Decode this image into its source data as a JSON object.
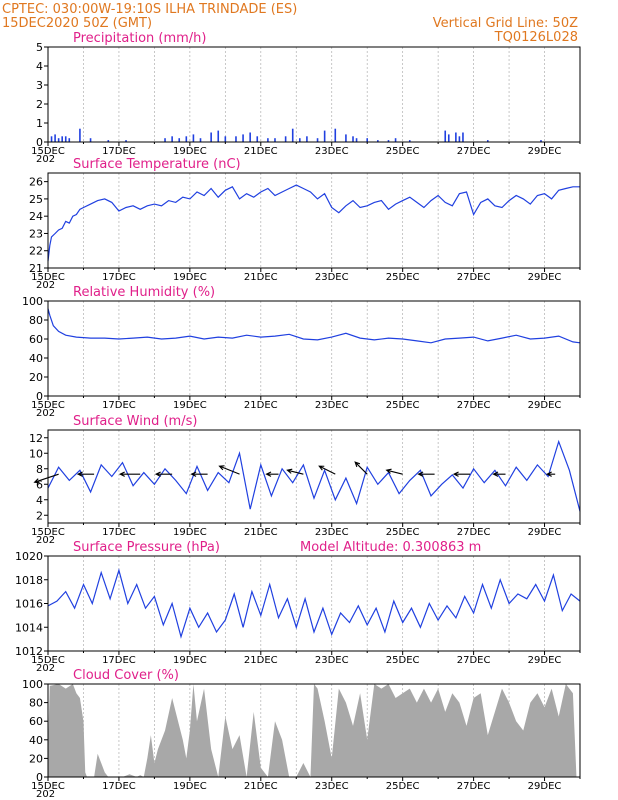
{
  "header": {
    "line1_left": "CPTEC:   030:00W-19:10S   ILHA TRINDADE (ES)",
    "line2_left": "15DEC2020 50Z (GMT)",
    "line1_right": "Vertical Grid Line: 50Z",
    "line2_right": "TQ0126L028"
  },
  "colors": {
    "header": "#e07820",
    "title": "#e0208a",
    "series": "#2040e0",
    "cloud": "#a8a8a8"
  },
  "x_axis": {
    "tick_labels": [
      "15DEC",
      "17DEC",
      "19DEC",
      "21DEC",
      "23DEC",
      "25DEC",
      "27DEC",
      "29DEC"
    ],
    "year_stub": "202"
  },
  "chart_data": [
    {
      "id": "precip",
      "type": "bar",
      "title": "Precipitation (mm/h)",
      "ylim": [
        0,
        5
      ],
      "yticks": [
        0,
        1,
        2,
        3,
        4,
        5
      ],
      "days": 15,
      "x": [
        0.1,
        0.2,
        0.3,
        0.4,
        0.5,
        0.6,
        0.9,
        1.2,
        1.7,
        2.2,
        3.3,
        3.5,
        3.7,
        3.9,
        4.1,
        4.3,
        4.6,
        4.8,
        5.0,
        5.3,
        5.5,
        5.7,
        5.9,
        6.2,
        6.4,
        6.7,
        6.9,
        7.1,
        7.3,
        7.6,
        7.8,
        8.1,
        8.4,
        8.6,
        8.7,
        9.0,
        9.3,
        9.6,
        9.8,
        10.2,
        11.2,
        11.3,
        11.5,
        11.6,
        11.7,
        12.4,
        13.9
      ],
      "values": [
        0.3,
        0.4,
        0.2,
        0.3,
        0.3,
        0.2,
        0.7,
        0.2,
        0.1,
        0.1,
        0.2,
        0.3,
        0.2,
        0.3,
        0.4,
        0.2,
        0.5,
        0.6,
        0.3,
        0.3,
        0.4,
        0.5,
        0.3,
        0.2,
        0.2,
        0.3,
        0.7,
        0.2,
        0.3,
        0.2,
        0.6,
        0.7,
        0.4,
        0.3,
        0.2,
        0.2,
        0.1,
        0.1,
        0.2,
        0.1,
        0.6,
        0.4,
        0.5,
        0.3,
        0.5,
        0.1,
        0.1
      ]
    },
    {
      "id": "temp",
      "type": "line",
      "title": "Surface Temperature (nC)",
      "ylim": [
        21,
        26.5
      ],
      "yticks": [
        21,
        22,
        23,
        24,
        25,
        26
      ],
      "days": 15,
      "x": [
        0,
        0.05,
        0.1,
        0.2,
        0.3,
        0.4,
        0.5,
        0.6,
        0.7,
        0.8,
        0.9,
        1.0,
        1.2,
        1.4,
        1.6,
        1.8,
        2.0,
        2.2,
        2.4,
        2.6,
        2.8,
        3.0,
        3.2,
        3.4,
        3.6,
        3.8,
        4.0,
        4.2,
        4.4,
        4.6,
        4.8,
        5.0,
        5.2,
        5.4,
        5.6,
        5.8,
        6.0,
        6.2,
        6.4,
        6.6,
        6.8,
        7.0,
        7.2,
        7.4,
        7.6,
        7.8,
        8.0,
        8.2,
        8.4,
        8.6,
        8.8,
        9.0,
        9.2,
        9.4,
        9.6,
        9.8,
        10.0,
        10.2,
        10.4,
        10.6,
        10.8,
        11.0,
        11.2,
        11.4,
        11.6,
        11.8,
        12.0,
        12.2,
        12.4,
        12.6,
        12.8,
        13.0,
        13.2,
        13.4,
        13.6,
        13.8,
        14.0,
        14.2,
        14.4,
        14.6,
        14.8,
        15.0
      ],
      "values": [
        21.4,
        22.3,
        22.8,
        23.0,
        23.2,
        23.3,
        23.7,
        23.6,
        24.0,
        24.1,
        24.4,
        24.5,
        24.7,
        24.9,
        25.0,
        24.8,
        24.3,
        24.5,
        24.6,
        24.4,
        24.6,
        24.7,
        24.6,
        24.9,
        24.8,
        25.1,
        25.0,
        25.4,
        25.2,
        25.6,
        25.1,
        25.5,
        25.7,
        25.0,
        25.3,
        25.1,
        25.4,
        25.6,
        25.2,
        25.4,
        25.6,
        25.8,
        25.6,
        25.4,
        25.0,
        25.3,
        24.5,
        24.2,
        24.6,
        24.9,
        24.5,
        24.6,
        24.8,
        24.9,
        24.4,
        24.7,
        24.9,
        25.1,
        24.8,
        24.5,
        24.9,
        25.2,
        24.8,
        24.6,
        25.3,
        25.4,
        24.1,
        24.8,
        25.0,
        24.6,
        24.5,
        24.9,
        25.2,
        25.0,
        24.7,
        25.2,
        25.3,
        25.0,
        25.5,
        25.6,
        25.7,
        25.7
      ]
    },
    {
      "id": "rh",
      "type": "line",
      "title": "Relative Humidity (%)",
      "ylim": [
        0,
        100
      ],
      "yticks": [
        0,
        20,
        40,
        60,
        80,
        100
      ],
      "days": 15,
      "x": [
        0,
        0.05,
        0.15,
        0.3,
        0.5,
        0.8,
        1.2,
        1.6,
        2.0,
        2.4,
        2.8,
        3.2,
        3.6,
        4.0,
        4.4,
        4.8,
        5.2,
        5.6,
        6.0,
        6.4,
        6.8,
        7.2,
        7.6,
        8.0,
        8.4,
        8.8,
        9.2,
        9.6,
        10.0,
        10.4,
        10.8,
        11.2,
        11.6,
        12.0,
        12.4,
        12.8,
        13.2,
        13.6,
        14.0,
        14.4,
        14.8,
        15.0
      ],
      "values": [
        92,
        85,
        74,
        68,
        64,
        62,
        61,
        61,
        60,
        61,
        62,
        60,
        61,
        63,
        60,
        62,
        61,
        64,
        62,
        63,
        65,
        60,
        59,
        62,
        66,
        61,
        59,
        61,
        60,
        58,
        56,
        60,
        61,
        62,
        58,
        61,
        64,
        60,
        61,
        63,
        57,
        56
      ]
    },
    {
      "id": "wind",
      "type": "line",
      "title": "Surface Wind (m/s)",
      "ylim": [
        1,
        13
      ],
      "yticks": [
        2,
        4,
        6,
        8,
        10,
        12
      ],
      "days": 15,
      "x": [
        0,
        0.3,
        0.6,
        0.9,
        1.2,
        1.5,
        1.8,
        2.1,
        2.4,
        2.7,
        3.0,
        3.3,
        3.6,
        3.9,
        4.2,
        4.5,
        4.8,
        5.1,
        5.4,
        5.7,
        6.0,
        6.3,
        6.6,
        6.9,
        7.2,
        7.5,
        7.8,
        8.1,
        8.4,
        8.7,
        9.0,
        9.3,
        9.6,
        9.9,
        10.2,
        10.5,
        10.8,
        11.1,
        11.4,
        11.7,
        12.0,
        12.3,
        12.6,
        12.9,
        13.2,
        13.5,
        13.8,
        14.1,
        14.4,
        14.7,
        15.0
      ],
      "values": [
        5.5,
        8.2,
        6.5,
        7.8,
        5.0,
        8.5,
        7.0,
        8.8,
        5.8,
        7.5,
        6.0,
        8.0,
        6.5,
        4.8,
        8.3,
        5.2,
        7.5,
        6.2,
        10.0,
        2.8,
        8.5,
        4.5,
        8.0,
        6.2,
        8.5,
        4.2,
        7.8,
        4.0,
        6.8,
        3.5,
        8.2,
        6.0,
        7.5,
        4.8,
        6.5,
        7.8,
        4.5,
        6.0,
        7.2,
        5.5,
        8.0,
        6.2,
        7.8,
        5.8,
        8.2,
        6.5,
        8.5,
        7.0,
        11.5,
        7.8,
        2.5
      ],
      "vectors": [
        {
          "x": 0.3,
          "u": -3,
          "v": -1
        },
        {
          "x": 1.3,
          "u": -2,
          "v": 0
        },
        {
          "x": 2.6,
          "u": -2.5,
          "v": 0
        },
        {
          "x": 3.5,
          "u": -2,
          "v": 0
        },
        {
          "x": 4.5,
          "u": -2,
          "v": 0
        },
        {
          "x": 5.4,
          "u": -2.5,
          "v": 1
        },
        {
          "x": 6.5,
          "u": -1.5,
          "v": 0
        },
        {
          "x": 7.2,
          "u": -2,
          "v": 0.5
        },
        {
          "x": 8.1,
          "u": -2,
          "v": 1
        },
        {
          "x": 9.0,
          "u": -1.5,
          "v": 1.5
        },
        {
          "x": 10.0,
          "u": -2,
          "v": 0.5
        },
        {
          "x": 10.9,
          "u": -2,
          "v": 0
        },
        {
          "x": 11.9,
          "u": -2,
          "v": 0
        },
        {
          "x": 12.9,
          "u": -1.5,
          "v": 0
        },
        {
          "x": 14.3,
          "u": -1,
          "v": 0
        }
      ]
    },
    {
      "id": "pres",
      "type": "line",
      "title": "Surface Pressure (hPa)",
      "annotation": "Model Altitude: 0.300863 m",
      "ylim": [
        1012,
        1020
      ],
      "yticks": [
        1012,
        1014,
        1016,
        1018,
        1020
      ],
      "days": 15,
      "x": [
        0,
        0.25,
        0.5,
        0.75,
        1.0,
        1.25,
        1.5,
        1.75,
        2.0,
        2.25,
        2.5,
        2.75,
        3.0,
        3.25,
        3.5,
        3.75,
        4.0,
        4.25,
        4.5,
        4.75,
        5.0,
        5.25,
        5.5,
        5.75,
        6.0,
        6.25,
        6.5,
        6.75,
        7.0,
        7.25,
        7.5,
        7.75,
        8.0,
        8.25,
        8.5,
        8.75,
        9.0,
        9.25,
        9.5,
        9.75,
        10.0,
        10.25,
        10.5,
        10.75,
        11.0,
        11.25,
        11.5,
        11.75,
        12.0,
        12.25,
        12.5,
        12.75,
        13.0,
        13.25,
        13.5,
        13.75,
        14.0,
        14.25,
        14.5,
        14.75,
        15.0
      ],
      "values": [
        1015.8,
        1016.2,
        1017.0,
        1015.6,
        1017.6,
        1016.0,
        1018.6,
        1016.4,
        1018.8,
        1016.0,
        1017.6,
        1015.6,
        1016.6,
        1014.2,
        1016.0,
        1013.2,
        1015.6,
        1014.0,
        1015.2,
        1013.6,
        1014.6,
        1016.8,
        1014.0,
        1017.0,
        1015.0,
        1017.6,
        1014.8,
        1016.4,
        1014.0,
        1016.4,
        1013.6,
        1015.6,
        1013.4,
        1015.2,
        1014.4,
        1015.8,
        1014.2,
        1015.6,
        1013.6,
        1016.2,
        1014.4,
        1015.6,
        1014.0,
        1016.0,
        1014.6,
        1015.8,
        1014.8,
        1016.6,
        1015.2,
        1017.6,
        1015.6,
        1018.0,
        1016.0,
        1016.8,
        1016.4,
        1017.6,
        1016.2,
        1018.4,
        1015.4,
        1016.8,
        1016.2
      ]
    },
    {
      "id": "cloud",
      "type": "area",
      "title": "Cloud Cover (%)",
      "ylim": [
        0,
        100
      ],
      "yticks": [
        0,
        20,
        40,
        60,
        80,
        100
      ],
      "days": 15,
      "x": [
        0,
        0.05,
        0.3,
        0.5,
        0.7,
        0.8,
        0.9,
        1.0,
        1.05,
        1.1,
        1.3,
        1.4,
        1.5,
        1.6,
        1.7,
        1.8,
        2.0,
        2.1,
        2.3,
        2.5,
        2.6,
        2.7,
        2.8,
        2.9,
        3.0,
        3.1,
        3.3,
        3.5,
        3.7,
        3.8,
        3.9,
        4.0,
        4.1,
        4.2,
        4.4,
        4.6,
        4.8,
        5.0,
        5.2,
        5.4,
        5.6,
        5.8,
        6.0,
        6.2,
        6.4,
        6.6,
        6.8,
        7.0,
        7.2,
        7.4,
        7.5,
        7.6,
        7.8,
        8.0,
        8.2,
        8.4,
        8.6,
        8.8,
        9.0,
        9.2,
        9.4,
        9.6,
        9.8,
        10.0,
        10.2,
        10.4,
        10.6,
        10.8,
        11.0,
        11.2,
        11.4,
        11.6,
        11.8,
        12.0,
        12.2,
        12.4,
        12.6,
        12.8,
        13.0,
        13.2,
        13.4,
        13.6,
        13.8,
        14.0,
        14.2,
        14.4,
        14.6,
        14.8,
        14.9,
        15.0
      ],
      "values": [
        30,
        98,
        100,
        95,
        100,
        90,
        85,
        60,
        5,
        0,
        0,
        25,
        15,
        5,
        0,
        0,
        0,
        0,
        3,
        0,
        2,
        0,
        20,
        45,
        15,
        30,
        50,
        85,
        55,
        40,
        20,
        50,
        100,
        60,
        95,
        30,
        0,
        65,
        30,
        45,
        0,
        70,
        10,
        0,
        60,
        40,
        0,
        0,
        15,
        0,
        100,
        95,
        60,
        20,
        95,
        80,
        55,
        90,
        40,
        100,
        95,
        100,
        85,
        90,
        95,
        80,
        95,
        80,
        95,
        70,
        90,
        80,
        55,
        85,
        90,
        45,
        70,
        95,
        80,
        60,
        50,
        80,
        90,
        75,
        95,
        65,
        100,
        90,
        0,
        0
      ]
    }
  ]
}
